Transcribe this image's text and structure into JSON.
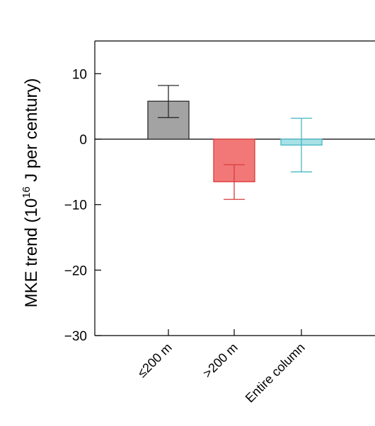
{
  "chart_data": {
    "type": "bar",
    "title": "",
    "xlabel": "",
    "ylabel": {
      "prefix": "MKE trend (10",
      "superscript": "16",
      "suffix": " J per century)"
    },
    "ylim": [
      -30,
      15
    ],
    "yticks": [
      10,
      0,
      -10,
      -20,
      -30
    ],
    "ytick_labels": [
      "10",
      "0",
      "−10",
      "−20",
      "−30"
    ],
    "categories": [
      "≤200 m",
      ">200 m",
      "Entire column"
    ],
    "values": [
      5.8,
      -6.5,
      -0.9
    ],
    "error_low": [
      3.3,
      -9.2,
      -5.0
    ],
    "error_high": [
      8.2,
      -3.9,
      3.2
    ],
    "bar_fill": [
      "#a3a3a3",
      "#f27878",
      "#a8e1e6"
    ],
    "bar_stroke": [
      "#2a2a2a",
      "#d93a3a",
      "#47b8c4"
    ],
    "grid": false,
    "zero_line": true
  }
}
